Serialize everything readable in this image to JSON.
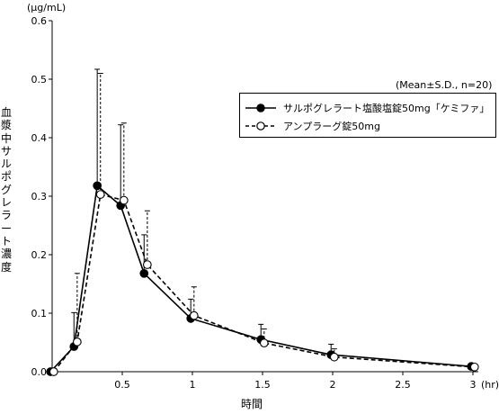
{
  "chart_data": {
    "type": "line",
    "y_unit": "(μg/mL)",
    "x_unit": "(hr)",
    "xlabel": "時間",
    "ylabel": "血漿中サルポグレラート濃度",
    "stats_note": "(Mean±S.D., n=20)",
    "ylim": [
      0,
      0.6
    ],
    "xlim": [
      0,
      3
    ],
    "y_ticks": [
      "0.0",
      "0.1",
      "0.2",
      "0.3",
      "0.4",
      "0.5",
      "0.6"
    ],
    "x_ticks": [
      "0.5",
      "1",
      "1.5",
      "2",
      "2.5",
      "3"
    ],
    "legend_position": "top-right",
    "series": [
      {
        "name": "サルポグレラート塩酸塩錠50mg「ケミファ」",
        "style": "solid-filled-circle",
        "color": "#000000",
        "x": [
          0,
          0.167,
          0.333,
          0.5,
          0.667,
          1,
          1.5,
          2,
          3
        ],
        "y": [
          0.0,
          0.043,
          0.318,
          0.284,
          0.168,
          0.091,
          0.055,
          0.029,
          0.009
        ],
        "sd": [
          0,
          0.058,
          0.199,
          0.138,
          0.066,
          0.033,
          0.026,
          0.018,
          0.004
        ]
      },
      {
        "name": "アンプラーグ錠50mg",
        "style": "dashed-open-circle",
        "color": "#000000",
        "x": [
          0,
          0.167,
          0.333,
          0.5,
          0.667,
          1,
          1.5,
          2,
          3
        ],
        "y": [
          0.0,
          0.051,
          0.303,
          0.293,
          0.183,
          0.096,
          0.049,
          0.025,
          0.008
        ],
        "sd": [
          0,
          0.117,
          0.207,
          0.132,
          0.092,
          0.049,
          0.024,
          0.014,
          0.004
        ]
      }
    ]
  }
}
